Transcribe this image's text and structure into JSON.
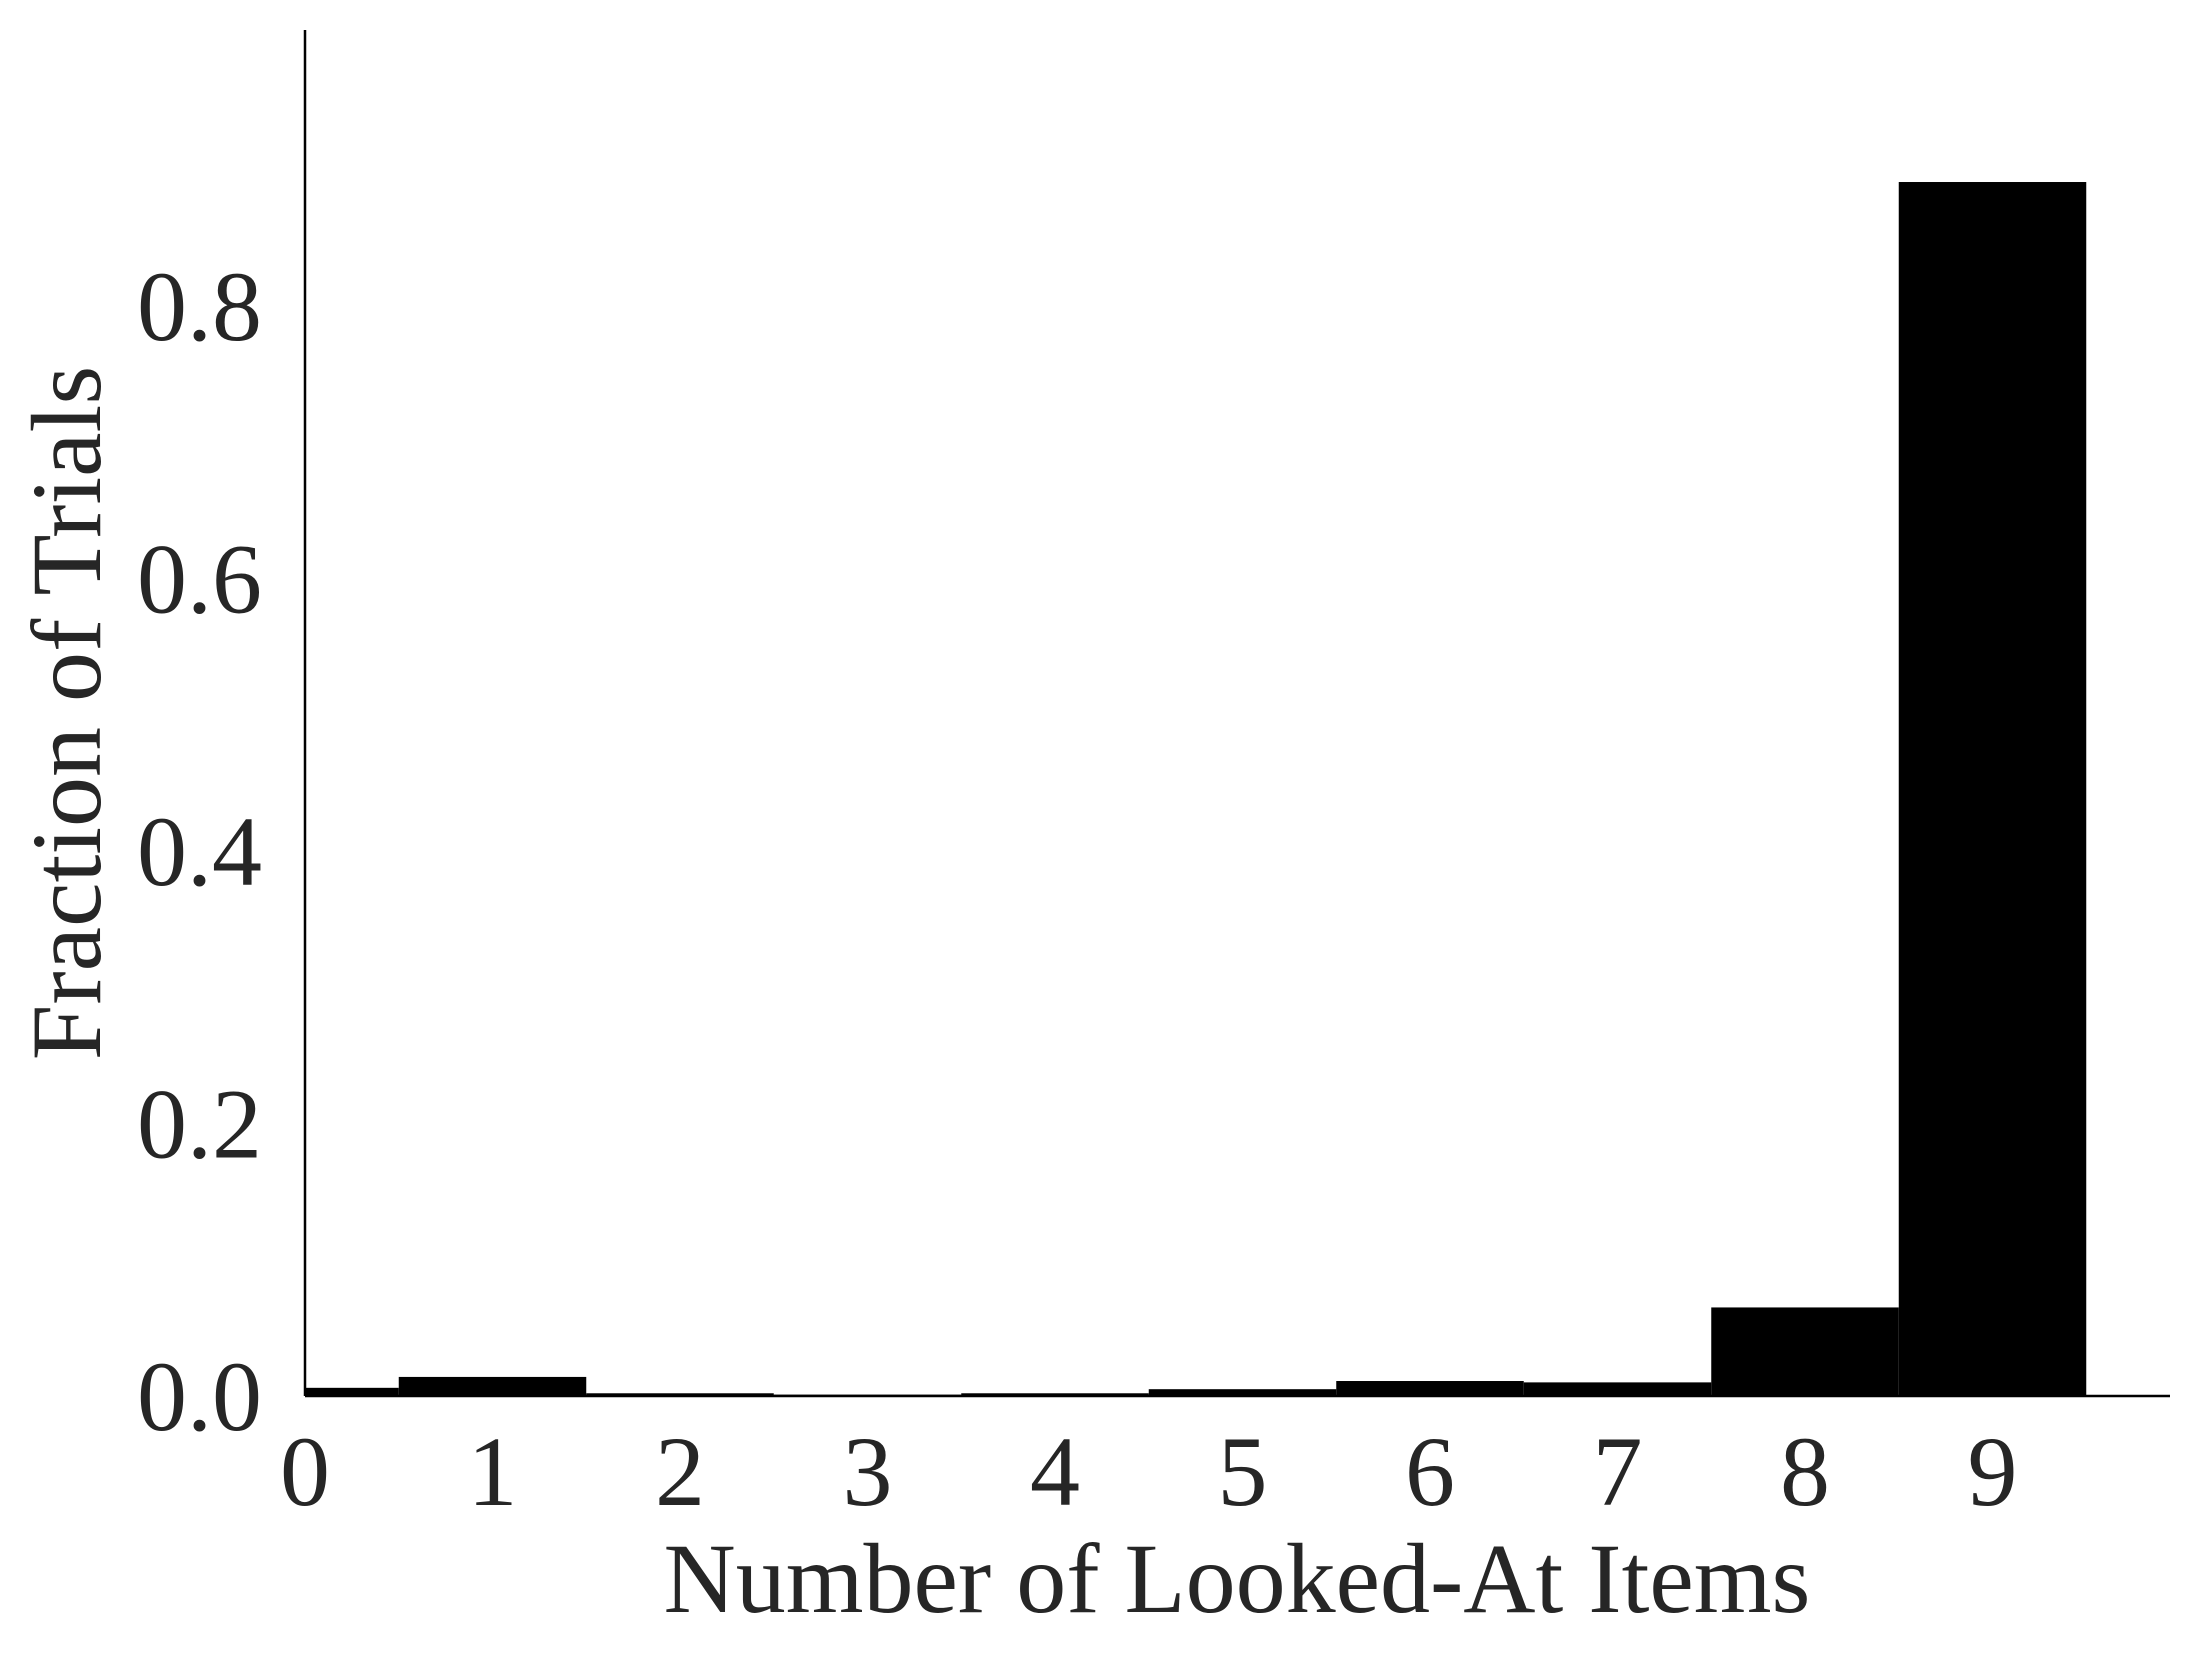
{
  "chart_data": {
    "type": "bar",
    "title": "",
    "xlabel": "Number of Looked-At Items",
    "ylabel": "Fraction of Trials",
    "categories": [
      "0",
      "1",
      "2",
      "3",
      "4",
      "5",
      "6",
      "7",
      "8",
      "9"
    ],
    "values": [
      0.006,
      0.014,
      0.002,
      0.001,
      0.002,
      0.005,
      0.011,
      0.01,
      0.065,
      0.891
    ],
    "x_ticks": [
      "0",
      "1",
      "2",
      "3",
      "4",
      "5",
      "6",
      "7",
      "8",
      "9"
    ],
    "y_ticks": [
      "0.0",
      "0.2",
      "0.4",
      "0.6",
      "0.8"
    ],
    "y_tick_values": [
      0.0,
      0.2,
      0.4,
      0.6,
      0.8
    ],
    "ylim": [
      0,
      1.0
    ],
    "xlim": [
      0,
      10
    ],
    "grid": false,
    "legend": "none",
    "bar_color": "#000000",
    "axis_color": "#000000",
    "text_color": "#262626"
  }
}
